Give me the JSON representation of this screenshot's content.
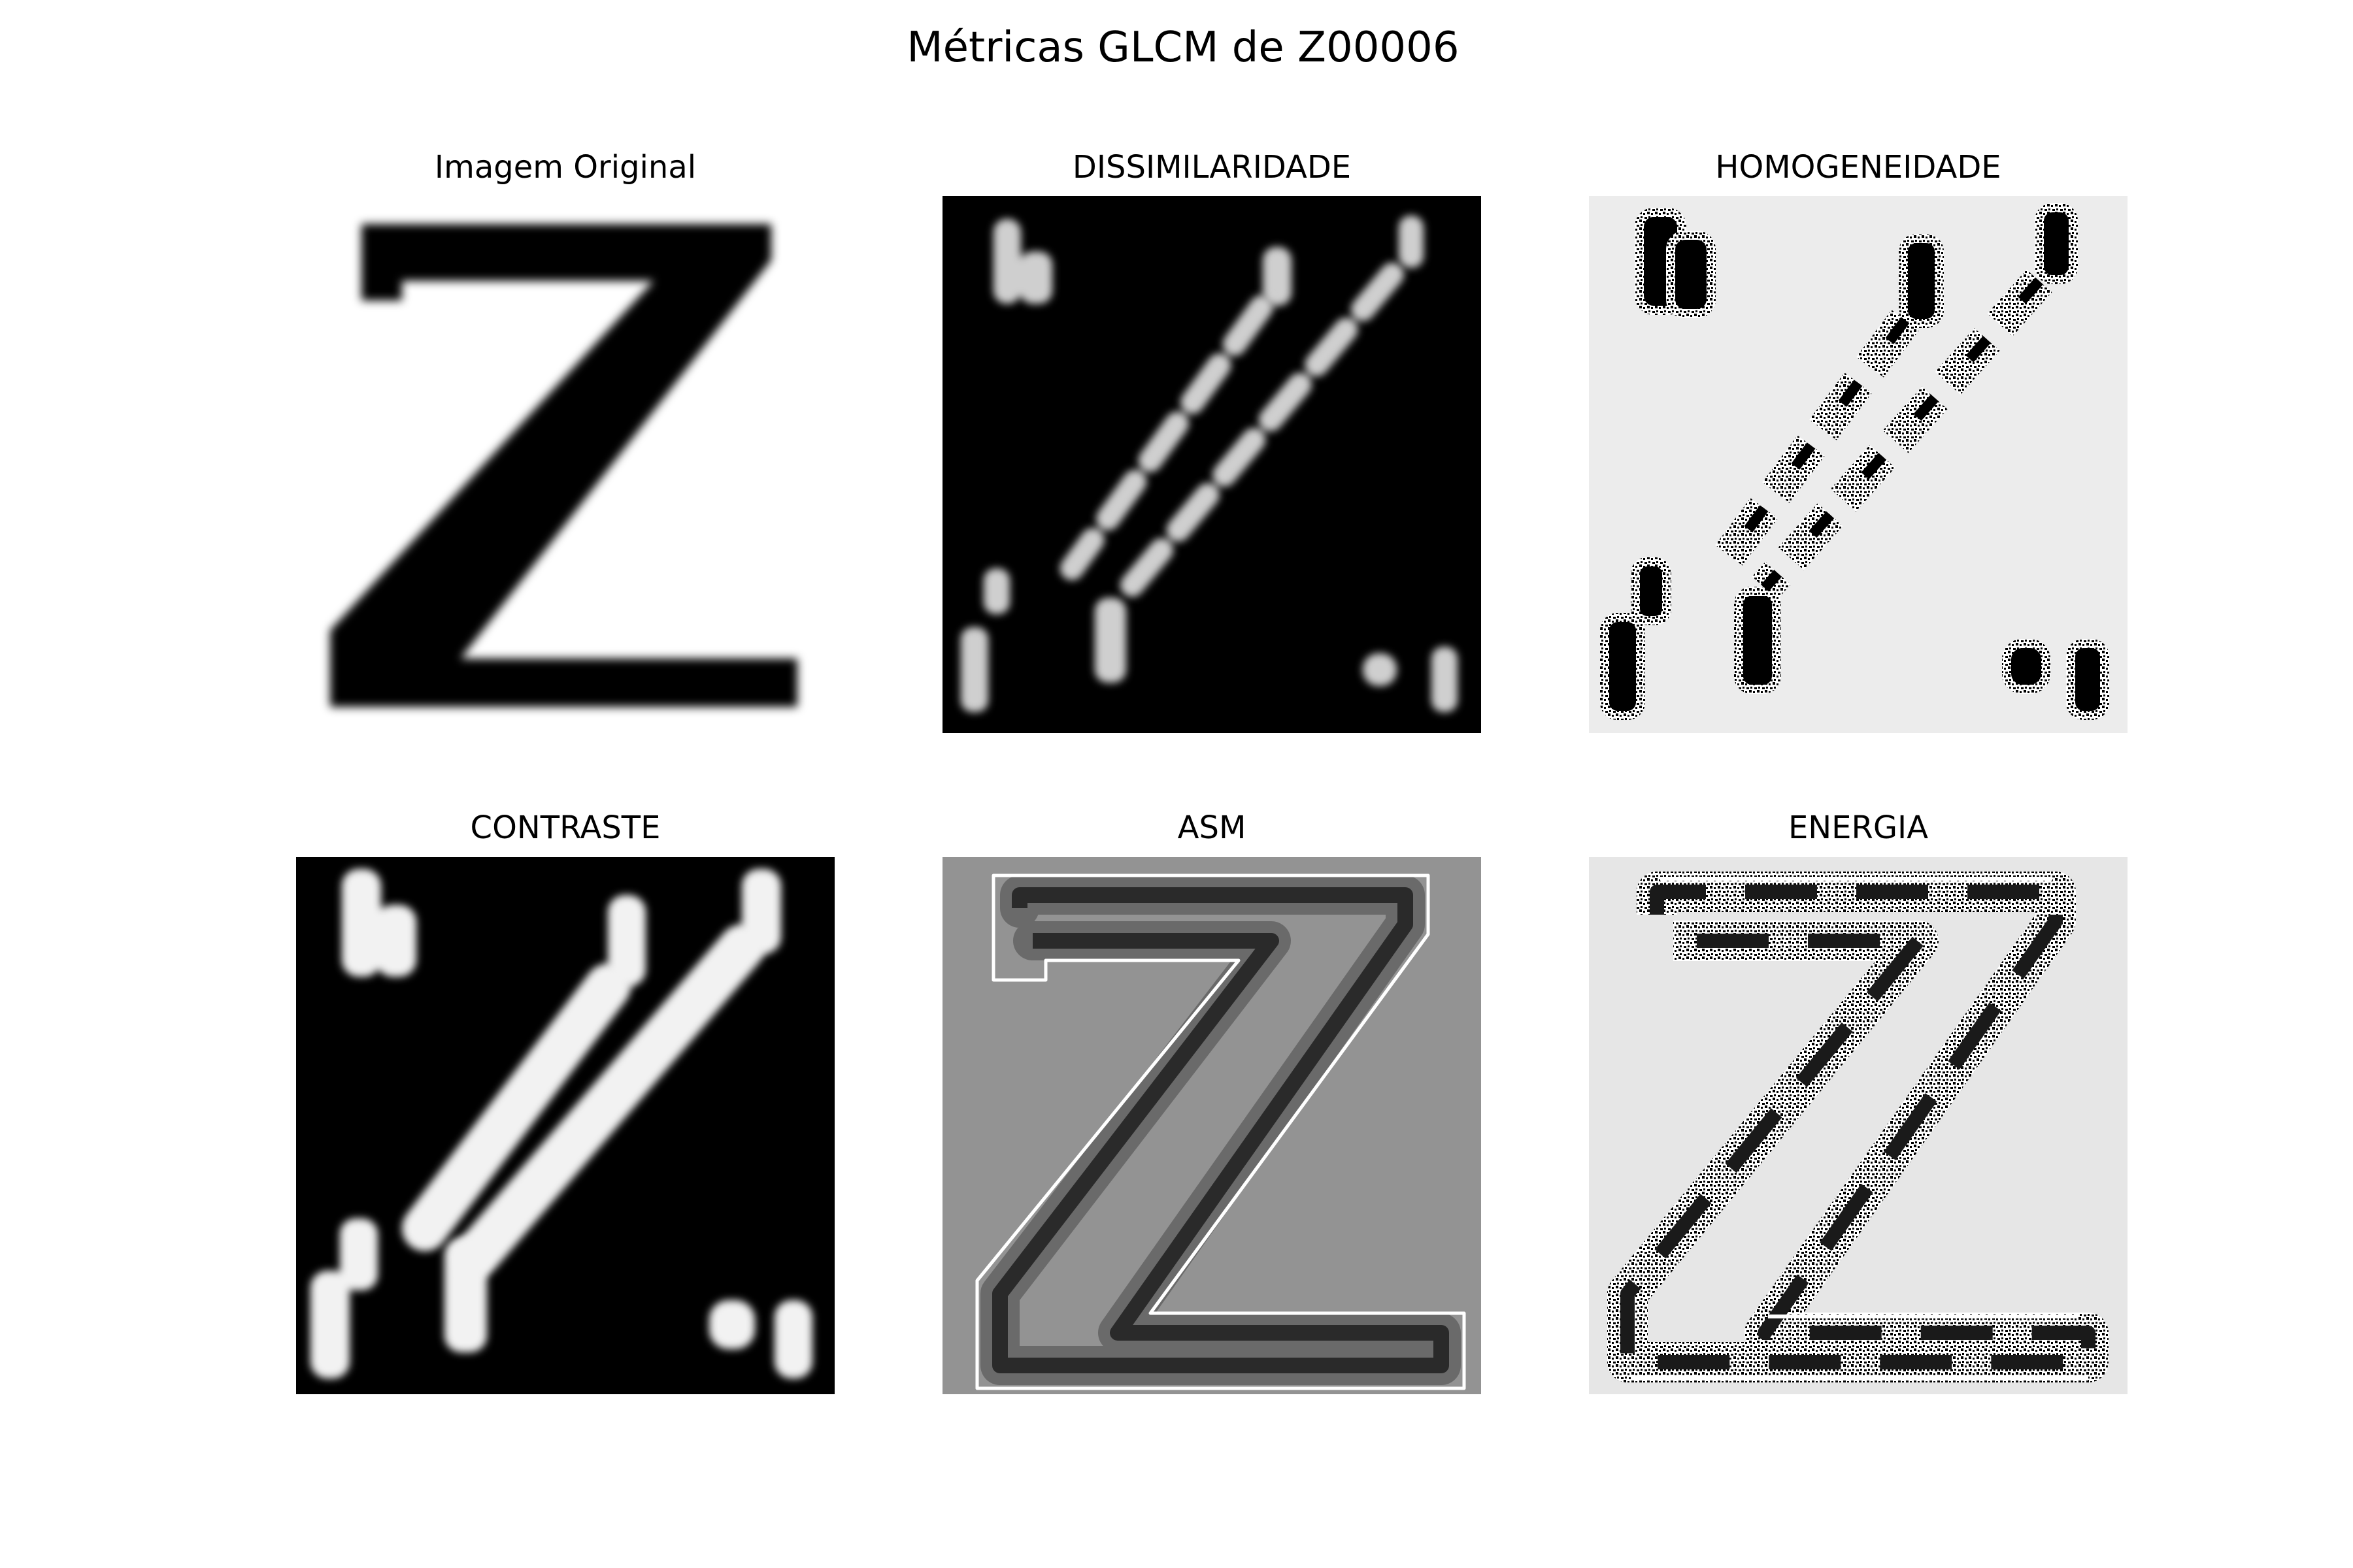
{
  "figure": {
    "title": "Métricas GLCM de Z00006",
    "panels": [
      {
        "id": "original",
        "label": "Imagem Original"
      },
      {
        "id": "dissimilaridade",
        "label": "DISSIMILARIDADE"
      },
      {
        "id": "homogeneidade",
        "label": "HOMOGENEIDADE"
      },
      {
        "id": "contraste",
        "label": "CONTRASTE"
      },
      {
        "id": "asm",
        "label": "ASM"
      },
      {
        "id": "energia",
        "label": "ENERGIA"
      }
    ]
  },
  "colors": {
    "background": "#ffffff",
    "ink": "#000000",
    "dark_panel": "#000000",
    "light_panel": "#ececec",
    "asm_panel": "#939393",
    "energia_panel": "#e6e6e6"
  }
}
